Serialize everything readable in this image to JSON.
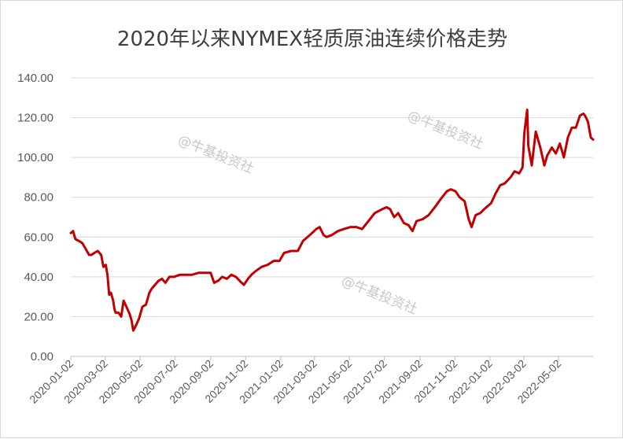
{
  "chart_data": {
    "type": "line",
    "title": "2020年以来NYMEX轻质原油连续价格走势",
    "xlabel": "",
    "ylabel": "",
    "ylim": [
      0,
      140
    ],
    "y_ticks": [
      "0.00",
      "20.00",
      "40.00",
      "60.00",
      "80.00",
      "100.00",
      "120.00",
      "140.00"
    ],
    "x_ticks": [
      "2020-01-02",
      "2020-03-02",
      "2020-05-02",
      "2020-07-02",
      "2020-09-02",
      "2020-11-02",
      "2021-01-02",
      "2021-03-02",
      "2021-05-02",
      "2021-07-02",
      "2021-09-02",
      "2021-11-02",
      "2022-01-02",
      "2022-03-02",
      "2022-05-02"
    ],
    "grid": true,
    "legend": "none",
    "colors": {
      "series": "#c00000"
    },
    "series": [
      {
        "name": "",
        "x": [
          "2020-01-02",
          "2020-01-06",
          "2020-01-10",
          "2020-01-16",
          "2020-01-22",
          "2020-01-28",
          "2020-02-03",
          "2020-02-07",
          "2020-02-12",
          "2020-02-18",
          "2020-02-24",
          "2020-02-28",
          "2020-03-03",
          "2020-03-06",
          "2020-03-09",
          "2020-03-12",
          "2020-03-16",
          "2020-03-18",
          "2020-03-20",
          "2020-03-25",
          "2020-03-30",
          "2020-04-03",
          "2020-04-08",
          "2020-04-14",
          "2020-04-17",
          "2020-04-20",
          "2020-04-22",
          "2020-04-27",
          "2020-04-30",
          "2020-05-06",
          "2020-05-12",
          "2020-05-18",
          "2020-05-22",
          "2020-05-28",
          "2020-06-03",
          "2020-06-09",
          "2020-06-15",
          "2020-06-22",
          "2020-06-30",
          "2020-07-10",
          "2020-07-20",
          "2020-07-31",
          "2020-08-12",
          "2020-08-25",
          "2020-09-02",
          "2020-09-08",
          "2020-09-15",
          "2020-09-22",
          "2020-09-30",
          "2020-10-08",
          "2020-10-16",
          "2020-10-26",
          "2020-10-30",
          "2020-11-06",
          "2020-11-12",
          "2020-11-20",
          "2020-11-30",
          "2020-12-10",
          "2020-12-21",
          "2020-12-31",
          "2021-01-08",
          "2021-01-20",
          "2021-02-01",
          "2021-02-10",
          "2021-02-22",
          "2021-03-05",
          "2021-03-11",
          "2021-03-18",
          "2021-03-23",
          "2021-04-01",
          "2021-04-12",
          "2021-04-22",
          "2021-05-04",
          "2021-05-14",
          "2021-05-24",
          "2021-06-04",
          "2021-06-15",
          "2021-06-28",
          "2021-07-06",
          "2021-07-12",
          "2021-07-19",
          "2021-07-26",
          "2021-08-05",
          "2021-08-13",
          "2021-08-20",
          "2021-08-27",
          "2021-09-07",
          "2021-09-17",
          "2021-09-28",
          "2021-10-08",
          "2021-10-19",
          "2021-10-26",
          "2021-11-03",
          "2021-11-10",
          "2021-11-19",
          "2021-11-26",
          "2021-12-01",
          "2021-12-08",
          "2021-12-16",
          "2021-12-23",
          "2022-01-04",
          "2022-01-12",
          "2022-01-20",
          "2022-01-28",
          "2022-02-07",
          "2022-02-14",
          "2022-02-22",
          "2022-02-28",
          "2022-03-03",
          "2022-03-08",
          "2022-03-10",
          "2022-03-16",
          "2022-03-23",
          "2022-03-31",
          "2022-04-07",
          "2022-04-12",
          "2022-04-20",
          "2022-04-27",
          "2022-05-04",
          "2022-05-11",
          "2022-05-18",
          "2022-05-25",
          "2022-06-01",
          "2022-06-08",
          "2022-06-14",
          "2022-06-17",
          "2022-06-22",
          "2022-06-27",
          "2022-07-01"
        ],
        "values": [
          62,
          63,
          59,
          58,
          57,
          54,
          51,
          51,
          52,
          53,
          51,
          45,
          46,
          41,
          31,
          32,
          28,
          24,
          22,
          22,
          20,
          28,
          25,
          21,
          18,
          13,
          14,
          17,
          19,
          25,
          26,
          32,
          34,
          36,
          38,
          39,
          37,
          40,
          40,
          41,
          41,
          41,
          42,
          42,
          42,
          37,
          38,
          40,
          39,
          41,
          40,
          37,
          36,
          39,
          41,
          43,
          45,
          46,
          48,
          48,
          52,
          53,
          53,
          58,
          61,
          64,
          65,
          61,
          60,
          61,
          63,
          64,
          65,
          65,
          64,
          68,
          72,
          74,
          75,
          74,
          70,
          72,
          67,
          66,
          63,
          68,
          69,
          71,
          75,
          79,
          83,
          84,
          83,
          80,
          78,
          69,
          65,
          71,
          72,
          74,
          77,
          82,
          86,
          87,
          90,
          93,
          92,
          95,
          112,
          124,
          106,
          96,
          113,
          105,
          96,
          101,
          105,
          102,
          107,
          100,
          110,
          115,
          115,
          121,
          122,
          121,
          118,
          110,
          109
        ]
      }
    ]
  },
  "watermark": "@牛基投资社"
}
